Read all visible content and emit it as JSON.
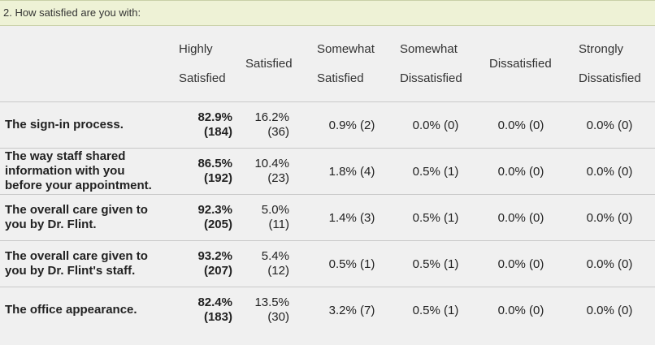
{
  "question": "2. How satisfied are you with:",
  "headers": {
    "highly": [
      "Highly",
      "Satisfied"
    ],
    "satisfied": "Satisfied",
    "somewhat_satisfied": [
      "Somewhat",
      "Satisfied"
    ],
    "somewhat_dissatisfied": [
      "Somewhat",
      "Dissatisfied"
    ],
    "dissatisfied": "Dissatisfied",
    "strongly_dissatisfied": [
      "Strongly",
      "Dissatisfied"
    ]
  },
  "rows": [
    {
      "label": [
        "The sign-in process."
      ],
      "highly": [
        "82.9%",
        "(184)"
      ],
      "satisfied": [
        "16.2%",
        "(36)"
      ],
      "somewhat_satisfied": "0.9% (2)",
      "somewhat_dissatisfied": "0.0% (0)",
      "dissatisfied": "0.0% (0)",
      "strongly_dissatisfied": "0.0% (0)"
    },
    {
      "label": [
        "The way staff shared",
        "information with you",
        "before your appointment."
      ],
      "highly": [
        "86.5%",
        "(192)"
      ],
      "satisfied": [
        "10.4%",
        "(23)"
      ],
      "somewhat_satisfied": "1.8% (4)",
      "somewhat_dissatisfied": "0.5% (1)",
      "dissatisfied": "0.0% (0)",
      "strongly_dissatisfied": "0.0% (0)"
    },
    {
      "label": [
        "The overall care given to",
        "you by Dr. Flint."
      ],
      "highly": [
        "92.3%",
        "(205)"
      ],
      "satisfied": [
        "5.0%",
        "(11)"
      ],
      "somewhat_satisfied": "1.4% (3)",
      "somewhat_dissatisfied": "0.5% (1)",
      "dissatisfied": "0.0% (0)",
      "strongly_dissatisfied": "0.0% (0)"
    },
    {
      "label": [
        "The overall care given to",
        "you by Dr. Flint's staff."
      ],
      "highly": [
        "93.2%",
        "(207)"
      ],
      "satisfied": [
        "5.4%",
        "(12)"
      ],
      "somewhat_satisfied": "0.5% (1)",
      "somewhat_dissatisfied": "0.5% (1)",
      "dissatisfied": "0.0% (0)",
      "strongly_dissatisfied": "0.0% (0)"
    },
    {
      "label": [
        "The office appearance."
      ],
      "highly": [
        "82.4%",
        "(183)"
      ],
      "satisfied": [
        "13.5%",
        "(30)"
      ],
      "somewhat_satisfied": "3.2% (7)",
      "somewhat_dissatisfied": "0.5% (1)",
      "dissatisfied": "0.0% (0)",
      "strongly_dissatisfied": "0.0% (0)"
    }
  ]
}
